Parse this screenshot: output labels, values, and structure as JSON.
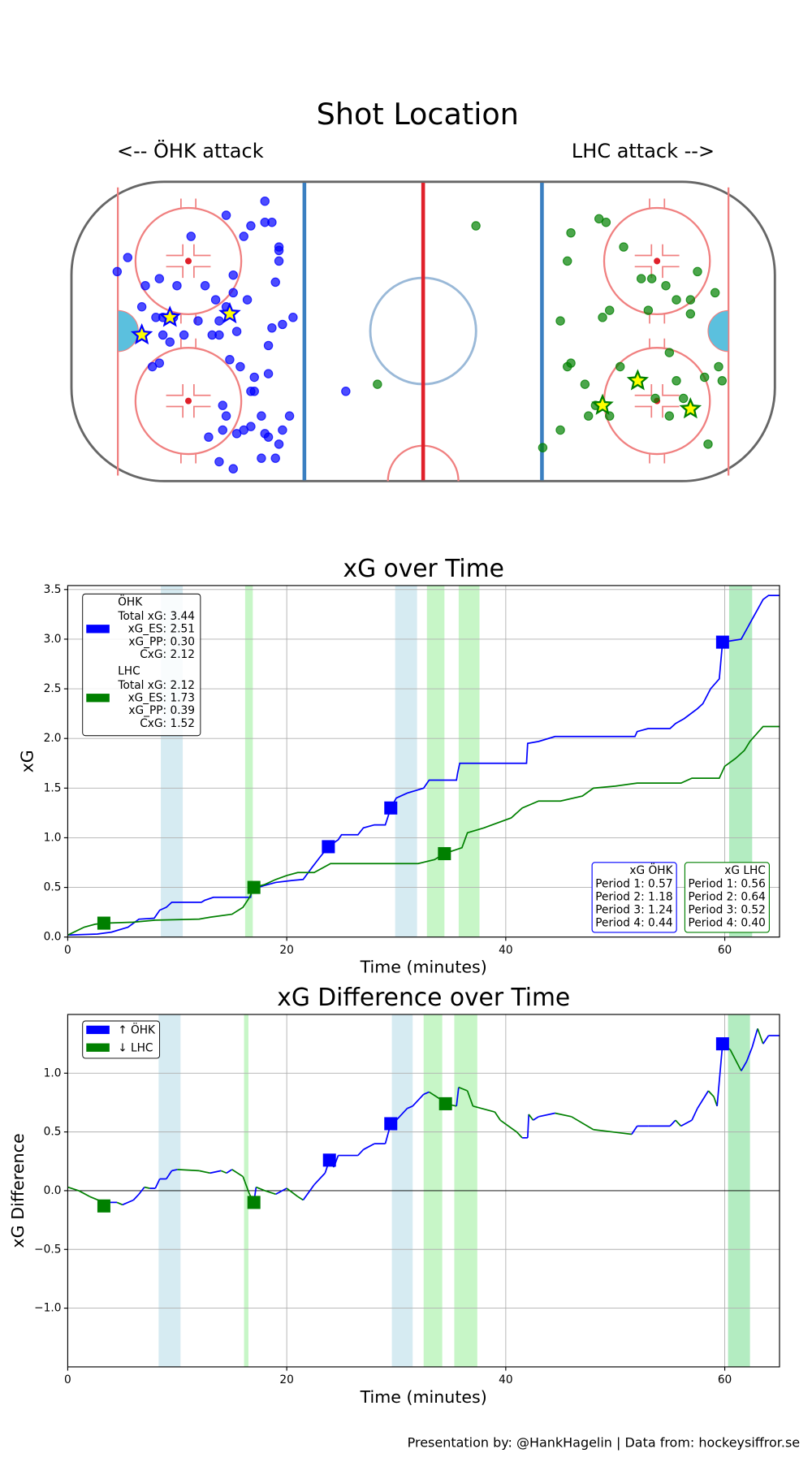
{
  "chart_data": [
    {
      "type": "scatter",
      "title": "Shot Location",
      "annotations": [
        "<-- ÖHK attack",
        "LHC attack -->"
      ],
      "xlim": [
        -100,
        100
      ],
      "ylim": [
        -42.5,
        42.5
      ],
      "series": [
        {
          "marker": "circle",
          "color": "#0000ff",
          "x": [
            -45,
            -56,
            -49,
            -45,
            -43,
            -66,
            -51,
            -41,
            -41,
            -41,
            -84,
            -87,
            -75,
            -54,
            -42,
            -79,
            -70,
            -62,
            -54,
            -50,
            -59,
            -80,
            -56,
            -37,
            -40,
            -43,
            -76,
            -74,
            -71,
            -64,
            -58,
            -74,
            -72,
            -68,
            -60,
            -58,
            -53,
            -44,
            -75,
            -77,
            -55,
            -52,
            -44,
            -48,
            -49,
            -48,
            -57,
            -56,
            -38,
            -46,
            -57,
            -49,
            -51,
            -40,
            -45,
            -53,
            -61,
            -44,
            -41,
            -42,
            -46,
            -58,
            -54,
            -22
          ],
          "values": [
            37,
            33,
            30,
            31,
            31,
            27,
            27,
            24,
            23,
            20,
            21,
            17,
            15,
            16,
            14,
            13,
            13,
            13,
            11,
            9,
            9,
            7,
            7,
            4,
            2,
            1,
            4,
            4,
            4,
            3,
            3,
            -1,
            -3,
            -1,
            -1,
            -1,
            0,
            -4,
            -9,
            -10,
            -8,
            -10,
            -12,
            -13,
            -17,
            -17,
            -21,
            -24,
            -24,
            -24,
            -28,
            -27,
            -28,
            -28,
            -29,
            -29,
            -30,
            -30,
            -32,
            -36,
            -36,
            -37,
            -39,
            -17
          ]
        },
        {
          "marker": "star",
          "color": "#ffff00",
          "edgecolor": "#0000ff",
          "x": [
            -80,
            -72,
            -55
          ],
          "values": [
            -1,
            4,
            5
          ]
        },
        {
          "marker": "circle",
          "color": "#008000",
          "x": [
            15,
            50,
            52,
            42,
            57,
            41,
            78,
            62,
            65,
            69,
            83,
            72,
            76,
            76,
            53,
            39,
            51,
            64,
            -13,
            42,
            41,
            70,
            56,
            84,
            80,
            85,
            46,
            72,
            74,
            49,
            53,
            47,
            70,
            66,
            39,
            34,
            81
          ],
          "values": [
            30,
            32,
            31,
            28,
            24,
            20,
            17,
            15,
            15,
            13,
            11,
            9,
            9,
            5,
            6,
            3,
            4,
            6,
            -15,
            -9,
            -10,
            -6,
            -10,
            -10,
            -13,
            -14,
            -15,
            -14,
            -19,
            -21,
            -24,
            -24,
            -24,
            -19,
            -28,
            -33,
            -32
          ]
        },
        {
          "marker": "star",
          "color": "#ffff00",
          "edgecolor": "#008000",
          "x": [
            61,
            51,
            76
          ],
          "values": [
            -14,
            -21,
            -22
          ]
        }
      ]
    },
    {
      "type": "line",
      "title": "xG over Time",
      "xlabel": "Time (minutes)",
      "ylabel": "xG",
      "grid": true,
      "xlim": [
        0,
        65
      ],
      "ylim": [
        0,
        3.54
      ],
      "xticks": [
        0,
        20,
        40,
        60
      ],
      "yticks": [
        {
          "value": 0,
          "label": "0.0"
        },
        {
          "value": 0.5,
          "label": "0.5"
        },
        {
          "value": 1,
          "label": "1.0"
        },
        {
          "value": 1.5,
          "label": "1.5"
        },
        {
          "value": 2,
          "label": "2.0"
        },
        {
          "value": 2.5,
          "label": "2.5"
        },
        {
          "value": 3,
          "label": "3.0"
        },
        {
          "value": 3.5,
          "label": "3.5"
        }
      ],
      "spans": [
        {
          "color": "#add8e6",
          "ranges": [
            [
              8.5,
              10.5
            ],
            [
              29.9,
              31.9
            ],
            [
              60.4,
              62.5
            ]
          ]
        },
        {
          "color": "#90ee90",
          "ranges": [
            [
              16.2,
              16.9
            ],
            [
              32.8,
              34.4
            ],
            [
              35.7,
              37.6
            ],
            [
              60.4,
              62.5
            ]
          ]
        }
      ],
      "series": [
        {
          "name": "ÖHK",
          "color": "#0000ff",
          "legend_lines": [
            "Total xG: 3.44",
            "xG_ES: 2.51",
            "xG_PP: 0.30",
            "CxG: 2.12"
          ],
          "x": [
            0,
            2.7,
            4,
            5.5,
            6.5,
            7.9,
            8.4,
            9,
            9.5,
            12.2,
            12.5,
            13.3,
            16.7,
            16.8,
            18,
            19,
            20.5,
            21.5,
            22.3,
            23,
            23.8,
            24.7,
            25,
            26.5,
            27,
            28,
            29,
            29.5,
            30,
            31,
            32.5,
            33,
            35.5,
            35.6,
            35.8,
            41.9,
            42,
            43,
            44.5,
            51.8,
            52,
            53,
            55,
            55.5,
            56.3,
            57.5,
            58,
            58.7,
            59.5,
            59.8,
            61.5,
            62,
            62.5,
            63,
            63.5,
            64,
            65
          ],
          "values": [
            0.02,
            0.03,
            0.05,
            0.1,
            0.18,
            0.19,
            0.27,
            0.3,
            0.35,
            0.35,
            0.37,
            0.4,
            0.4,
            0.48,
            0.52,
            0.55,
            0.57,
            0.58,
            0.7,
            0.8,
            0.91,
            0.98,
            1.03,
            1.03,
            1.1,
            1.13,
            1.13,
            1.3,
            1.4,
            1.45,
            1.5,
            1.58,
            1.58,
            1.65,
            1.75,
            1.75,
            1.95,
            1.97,
            2.02,
            2.02,
            2.07,
            2.1,
            2.1,
            2.15,
            2.2,
            2.3,
            2.35,
            2.5,
            2.6,
            2.97,
            3.0,
            3.1,
            3.2,
            3.3,
            3.4,
            3.44,
            3.44
          ],
          "goal_x": [
            23.8,
            29.5,
            59.8
          ],
          "goal_values": [
            0.91,
            1.3,
            2.97
          ]
        },
        {
          "name": "LHC",
          "color": "#008000",
          "legend_lines": [
            "Total xG: 2.12",
            "xG_ES: 1.73",
            "xG_PP: 0.39",
            "CxG: 1.52"
          ],
          "x": [
            0,
            1.5,
            2.5,
            3.3,
            6,
            8,
            12,
            13,
            15,
            16,
            16.6,
            17,
            18,
            19,
            20,
            21,
            22.5,
            24,
            32,
            33.5,
            34.4,
            36,
            36.5,
            38,
            40.5,
            41.5,
            43,
            45,
            47,
            48,
            50,
            52,
            56,
            57,
            59.5,
            60,
            61,
            61.8,
            62.3,
            63.5,
            65
          ],
          "values": [
            0.02,
            0.1,
            0.13,
            0.14,
            0.15,
            0.17,
            0.18,
            0.2,
            0.23,
            0.3,
            0.4,
            0.5,
            0.53,
            0.58,
            0.62,
            0.65,
            0.65,
            0.74,
            0.74,
            0.78,
            0.84,
            0.9,
            1.05,
            1.1,
            1.2,
            1.3,
            1.37,
            1.37,
            1.42,
            1.5,
            1.52,
            1.55,
            1.55,
            1.6,
            1.6,
            1.72,
            1.8,
            1.88,
            1.97,
            2.12,
            2.12
          ],
          "goal_x": [
            3.3,
            17,
            34.4
          ],
          "goal_values": [
            0.14,
            0.5,
            0.84
          ]
        }
      ],
      "period_boxes": [
        {
          "title": "xG ÖHK",
          "color": "#0000ff",
          "lines": [
            "Period 1: 0.57",
            "Period 2: 1.18",
            "Period 3: 1.24",
            "Period 4: 0.44"
          ]
        },
        {
          "title": "xG LHC",
          "color": "#008000",
          "lines": [
            "Period 1: 0.56",
            "Period 2: 0.64",
            "Period 3: 0.52",
            "Period 4: 0.40"
          ]
        }
      ]
    },
    {
      "type": "line",
      "title": "xG Difference over Time",
      "xlabel": "Time (minutes)",
      "ylabel": "xG Difference",
      "grid": true,
      "xlim": [
        0,
        65
      ],
      "ylim": [
        -1.5,
        1.5
      ],
      "xticks": [
        0,
        20,
        40,
        60
      ],
      "yticks": [
        {
          "value": -1,
          "label": "−1.0"
        },
        {
          "value": -0.5,
          "label": "−0.5"
        },
        {
          "value": 0,
          "label": "0.0"
        },
        {
          "value": 0.5,
          "label": "0.5"
        },
        {
          "value": 1,
          "label": "1.0"
        }
      ],
      "spans": [
        {
          "color": "#add8e6",
          "ranges": [
            [
              8.3,
              10.3
            ],
            [
              29.6,
              31.5
            ],
            [
              60.3,
              62.3
            ]
          ]
        },
        {
          "color": "#90ee90",
          "ranges": [
            [
              16.1,
              16.5
            ],
            [
              32.5,
              34.2
            ],
            [
              35.3,
              37.4
            ],
            [
              60.3,
              62.3
            ]
          ]
        }
      ],
      "legend": [
        {
          "name": "↑ ÖHK",
          "color": "#0000ff"
        },
        {
          "name": "↓ LHC",
          "color": "#008000"
        }
      ],
      "series": [
        {
          "rise_color": "#0000ff",
          "fall_color": "#008000",
          "x": [
            0,
            1,
            2,
            3.3,
            4.5,
            5,
            6,
            6.5,
            7,
            7.5,
            8,
            8.4,
            9,
            9.5,
            10,
            12,
            13,
            14,
            14.5,
            15,
            16,
            16.6,
            17,
            17.2,
            18,
            19,
            20,
            21,
            21.5,
            22.5,
            23.5,
            23.9,
            24.3,
            24.7,
            26.5,
            27,
            28,
            29,
            29.5,
            30,
            31,
            31.5,
            32.5,
            33,
            34,
            34.5,
            35.5,
            35.7,
            36.5,
            37,
            39,
            39.5,
            41,
            41.5,
            42,
            42.1,
            42.5,
            43,
            44.5,
            46,
            48,
            51.5,
            52,
            53,
            55,
            55.5,
            56,
            57,
            57.5,
            58.5,
            59,
            59.3,
            59.8,
            60.5,
            61.5,
            62,
            62.5,
            63,
            63.5,
            64,
            65
          ],
          "values": [
            0.03,
            0,
            -0.05,
            -0.1,
            -0.1,
            -0.12,
            -0.08,
            -0.03,
            0.03,
            0.02,
            0.02,
            0.1,
            0.1,
            0.17,
            0.18,
            0.17,
            0.15,
            0.17,
            0.15,
            0.18,
            0.12,
            -0.03,
            -0.1,
            0.03,
            0,
            -0.03,
            0.02,
            -0.05,
            -0.08,
            0.05,
            0.15,
            0.26,
            0.2,
            0.3,
            0.3,
            0.35,
            0.4,
            0.4,
            0.57,
            0.6,
            0.7,
            0.72,
            0.82,
            0.84,
            0.78,
            0.74,
            0.72,
            0.88,
            0.85,
            0.72,
            0.67,
            0.6,
            0.5,
            0.45,
            0.45,
            0.65,
            0.6,
            0.63,
            0.66,
            0.63,
            0.52,
            0.48,
            0.55,
            0.55,
            0.55,
            0.6,
            0.55,
            0.6,
            0.7,
            0.85,
            0.8,
            0.72,
            1.25,
            1.2,
            1.02,
            1.1,
            1.22,
            1.38,
            1.25,
            1.32,
            1.32
          ],
          "goal_x": [
            3.3,
            17,
            23.9,
            29.5,
            34.5,
            59.8
          ],
          "goal_values": [
            -0.13,
            -0.1,
            0.26,
            0.57,
            0.74,
            1.25
          ],
          "goal_colors": [
            "#008000",
            "#008000",
            "#0000ff",
            "#0000ff",
            "#008000",
            "#0000ff"
          ]
        }
      ]
    }
  ],
  "footer": "Presentation by: @HankHagelin | Data from: hockeysiffror.se"
}
